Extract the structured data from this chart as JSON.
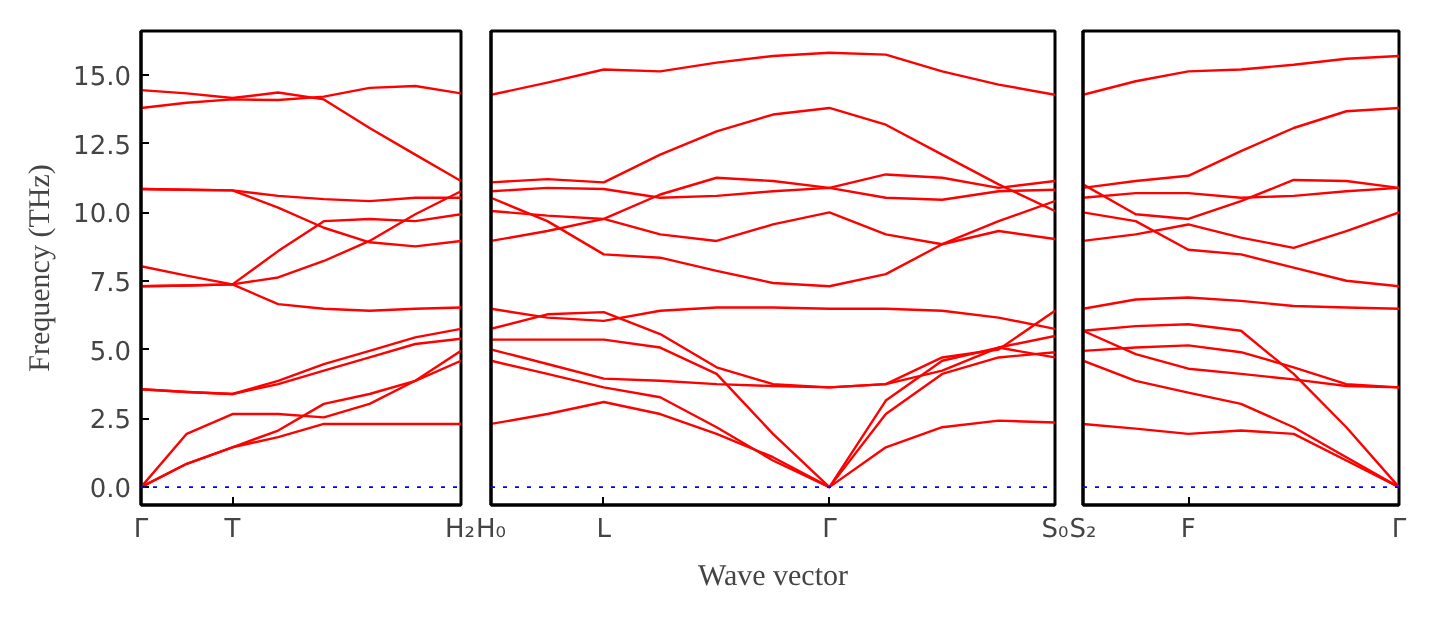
{
  "chart_data": [
    {
      "type": "line",
      "ylabel": "Frequency (THz)",
      "tick_labels": "xy",
      "categories": [
        "Γ",
        null,
        "T",
        null,
        null,
        null,
        null,
        "H₂"
      ],
      "ylim": [
        -0.65,
        16.6
      ],
      "yticks": [
        {
          "value": 0,
          "label": "0.0"
        },
        {
          "value": 2.5,
          "label": "2.5"
        },
        {
          "value": 5,
          "label": "5.0"
        },
        {
          "value": 7.5,
          "label": "7.5"
        },
        {
          "value": 10,
          "label": "10.0"
        },
        {
          "value": 12.5,
          "label": "12.5"
        },
        {
          "value": 15,
          "label": "15.0"
        }
      ],
      "grid": false,
      "ref_lines": [
        {
          "axis": "y",
          "value": 0,
          "color": "#0000ff",
          "line_style": "dotted"
        }
      ],
      "series": [
        {
          "color": "#ff0000",
          "values": [
            0,
            0.85,
            1.45,
            1.82,
            2.3,
            2.3,
            2.3,
            2.3
          ]
        },
        {
          "color": "#ff0000",
          "values": [
            0,
            0.85,
            1.45,
            2.06,
            3.03,
            3.39,
            3.87,
            4.6
          ]
        },
        {
          "color": "#ff0000",
          "values": [
            0,
            1.94,
            2.66,
            2.66,
            2.54,
            3.03,
            3.87,
            4.96
          ]
        },
        {
          "color": "#ff0000",
          "values": [
            3.56,
            3.46,
            3.39,
            3.75,
            4.24,
            4.72,
            5.21,
            5.4
          ]
        },
        {
          "color": "#ff0000",
          "values": [
            3.56,
            3.46,
            3.39,
            3.87,
            4.48,
            4.96,
            5.45,
            5.76
          ]
        },
        {
          "color": "#ff0000",
          "values": [
            7.31,
            7.34,
            7.38,
            6.66,
            6.49,
            6.42,
            6.49,
            6.54
          ]
        },
        {
          "color": "#ff0000",
          "values": [
            8.04,
            7.7,
            7.38,
            8.59,
            9.68,
            9.76,
            9.68,
            9.93
          ]
        },
        {
          "color": "#ff0000",
          "values": [
            7.31,
            7.34,
            7.38,
            7.63,
            8.23,
            8.96,
            9.93,
            10.77
          ]
        },
        {
          "color": "#ff0000",
          "values": [
            10.85,
            10.82,
            10.8,
            10.17,
            9.44,
            8.91,
            8.76,
            8.96
          ]
        },
        {
          "color": "#ff0000",
          "values": [
            10.85,
            10.82,
            10.8,
            10.6,
            10.48,
            10.41,
            10.53,
            10.53
          ]
        },
        {
          "color": "#ff0000",
          "values": [
            14.45,
            14.33,
            14.16,
            14.36,
            14.11,
            13.07,
            12.1,
            11.14
          ]
        },
        {
          "color": "#ff0000",
          "values": [
            13.8,
            13.99,
            14.11,
            14.09,
            14.21,
            14.53,
            14.6,
            14.33
          ]
        }
      ]
    },
    {
      "type": "line",
      "xlabel": "Wave vector",
      "tick_labels": "x",
      "categories": [
        "H₀",
        null,
        "L",
        null,
        null,
        null,
        "Γ",
        null,
        null,
        null,
        "S₀"
      ],
      "ylim": [
        -0.65,
        16.6
      ],
      "grid": false,
      "ref_lines": [
        {
          "axis": "y",
          "value": 0,
          "color": "#0000ff",
          "line_style": "dotted"
        }
      ],
      "series": [
        {
          "color": "#ff0000",
          "values": [
            2.3,
            2.66,
            3.1,
            2.66,
            1.94,
            1.09,
            0,
            1.45,
            2.18,
            2.42,
            2.35
          ]
        },
        {
          "color": "#ff0000",
          "values": [
            4.6,
            4.12,
            3.63,
            3.27,
            2.18,
            0.97,
            0,
            2.66,
            4.12,
            4.72,
            4.91
          ]
        },
        {
          "color": "#ff0000",
          "values": [
            5.37,
            5.37,
            5.37,
            5.08,
            4.12,
            1.94,
            0,
            3.15,
            4.6,
            5.08,
            5.5
          ]
        },
        {
          "color": "#ff0000",
          "values": [
            5.01,
            4.48,
            3.95,
            3.87,
            3.75,
            3.68,
            3.63,
            3.75,
            4.24,
            5.08,
            4.72
          ]
        },
        {
          "color": "#ff0000",
          "values": [
            6.49,
            6.17,
            6.05,
            6.42,
            6.54,
            6.54,
            6.49,
            6.49,
            6.42,
            6.17,
            5.76
          ]
        },
        {
          "color": "#ff0000",
          "values": [
            5.76,
            6.29,
            6.37,
            5.57,
            4.36,
            3.75,
            3.63,
            3.75,
            4.72,
            5.01,
            6.42
          ]
        },
        {
          "color": "#ff0000",
          "values": [
            14.28,
            14.72,
            15.2,
            15.13,
            15.45,
            15.69,
            15.81,
            15.74,
            15.13,
            14.65,
            14.28
          ]
        },
        {
          "color": "#ff0000",
          "values": [
            11.09,
            11.21,
            11.09,
            12.1,
            12.95,
            13.56,
            13.8,
            13.19,
            12.1,
            11.02,
            10.05
          ]
        },
        {
          "color": "#ff0000",
          "values": [
            10.77,
            10.89,
            10.85,
            10.53,
            10.6,
            10.77,
            10.89,
            10.53,
            10.46,
            10.77,
            10.82
          ]
        },
        {
          "color": "#ff0000",
          "values": [
            10.53,
            9.68,
            8.47,
            8.35,
            7.87,
            7.43,
            7.31,
            7.75,
            8.84,
            9.68,
            10.41
          ]
        },
        {
          "color": "#ff0000",
          "values": [
            10.05,
            9.88,
            9.76,
            9.2,
            8.96,
            9.56,
            10.0,
            9.2,
            8.84,
            9.32,
            9.03
          ]
        },
        {
          "color": "#ff0000",
          "values": [
            8.96,
            9.32,
            9.76,
            10.65,
            11.26,
            11.14,
            10.89,
            11.38,
            11.26,
            10.89,
            11.14
          ]
        }
      ]
    },
    {
      "type": "line",
      "tick_labels": "x",
      "categories": [
        "S₂",
        null,
        "F",
        null,
        null,
        null,
        "Γ"
      ],
      "ylim": [
        -0.65,
        16.6
      ],
      "grid": false,
      "ref_lines": [
        {
          "axis": "y",
          "value": 0,
          "color": "#0000ff",
          "line_style": "dotted"
        }
      ],
      "series": [
        {
          "color": "#ff0000",
          "values": [
            2.3,
            2.13,
            1.94,
            2.06,
            1.94,
            0.97,
            0
          ]
        },
        {
          "color": "#ff0000",
          "values": [
            4.6,
            3.87,
            3.44,
            3.03,
            2.18,
            1.09,
            0
          ]
        },
        {
          "color": "#ff0000",
          "values": [
            5.69,
            4.84,
            4.31,
            4.12,
            3.92,
            3.68,
            3.63
          ]
        },
        {
          "color": "#ff0000",
          "values": [
            5.69,
            5.86,
            5.93,
            5.69,
            4.12,
            2.18,
            0
          ]
        },
        {
          "color": "#ff0000",
          "values": [
            4.96,
            5.08,
            5.16,
            4.91,
            4.36,
            3.75,
            3.63
          ]
        },
        {
          "color": "#ff0000",
          "values": [
            6.49,
            6.83,
            6.9,
            6.78,
            6.59,
            6.54,
            6.49
          ]
        },
        {
          "color": "#ff0000",
          "values": [
            14.28,
            14.77,
            15.13,
            15.2,
            15.37,
            15.59,
            15.69
          ]
        },
        {
          "color": "#ff0000",
          "values": [
            10.89,
            11.14,
            11.33,
            12.23,
            13.07,
            13.68,
            13.8
          ]
        },
        {
          "color": "#ff0000",
          "values": [
            10.53,
            10.7,
            10.7,
            10.53,
            10.6,
            10.77,
            10.89
          ]
        },
        {
          "color": "#ff0000",
          "values": [
            11.02,
            9.93,
            9.76,
            10.41,
            11.18,
            11.14,
            10.89
          ]
        },
        {
          "color": "#ff0000",
          "values": [
            10.0,
            9.68,
            8.64,
            8.47,
            7.99,
            7.51,
            7.31
          ]
        },
        {
          "color": "#ff0000",
          "values": [
            8.96,
            9.2,
            9.56,
            9.08,
            8.71,
            9.32,
            10.0
          ]
        }
      ]
    }
  ]
}
